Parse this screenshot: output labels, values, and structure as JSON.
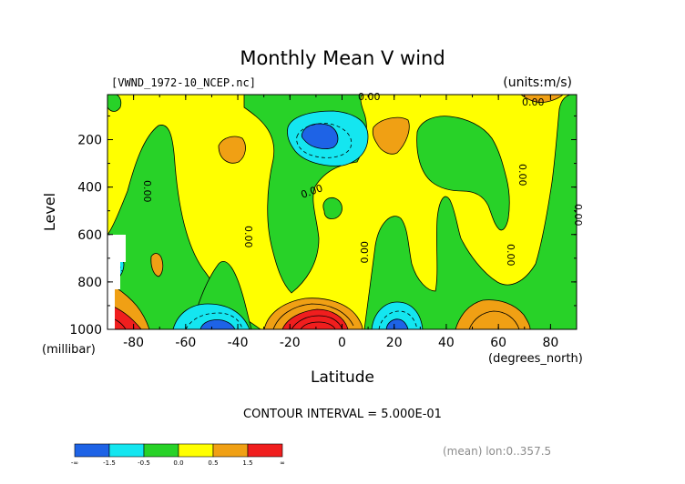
{
  "title": "Monthly Mean V wind",
  "file_label": "[VWND_1972-10_NCEP.nc]",
  "units_label": "(units:m/s)",
  "contour_interval_text": "CONTOUR INTERVAL = 5.000E-01",
  "footnote": "(mean) lon:0..357.5",
  "y_axis": {
    "label": "Level",
    "unit": "(millibar)",
    "ticks": [
      "200",
      "400",
      "600",
      "800",
      "1000"
    ]
  },
  "x_axis": {
    "label": "Latitude",
    "unit": "(degrees_north)",
    "ticks": [
      "-80",
      "-60",
      "-40",
      "-20",
      "0",
      "20",
      "40",
      "60",
      "80"
    ]
  },
  "contour_labels": [
    "0.00",
    "0.00",
    "0.00",
    "0.00",
    "0.00",
    "0.00",
    "0.00",
    "0.00",
    "0.00"
  ],
  "colorbar": {
    "colors": [
      "#1e63e6",
      "#14e6f0",
      "#28d228",
      "#ffff00",
      "#f0a014",
      "#f01e1e"
    ],
    "tick_labels": [
      "-∞",
      "-1.5",
      "-0.5",
      "0.0",
      "0.5",
      "1.5",
      "∞"
    ]
  },
  "chart_data": {
    "type": "heatmap",
    "title": "Monthly Mean V wind",
    "xlabel": "Latitude",
    "ylabel": "Level",
    "x_unit": "degrees_north",
    "y_unit": "millibar",
    "xlim": [
      -90,
      90
    ],
    "ylim": [
      1000,
      10
    ],
    "y_reversed": true,
    "units": "m/s",
    "contour_interval": 0.5,
    "levels": [
      -1.5,
      -0.5,
      0.0,
      0.5,
      1.5
    ],
    "features": [
      {
        "lat": -10,
        "level": 170,
        "value": -1.5
      },
      {
        "lat": -12,
        "level": 950,
        "value": 2.0
      },
      {
        "lat": -53,
        "level": 975,
        "value": -1.5
      },
      {
        "lat": 20,
        "level": 975,
        "value": -1.5
      },
      {
        "lat": -84,
        "level": 960,
        "value": 2.0
      },
      {
        "lat": -86,
        "level": 680,
        "value": -1.5
      },
      {
        "lat": 55,
        "level": 960,
        "value": 0.5
      },
      {
        "lat": 20,
        "level": 160,
        "value": 0.5
      },
      {
        "lat": -42,
        "level": 210,
        "value": 0.5
      }
    ]
  }
}
